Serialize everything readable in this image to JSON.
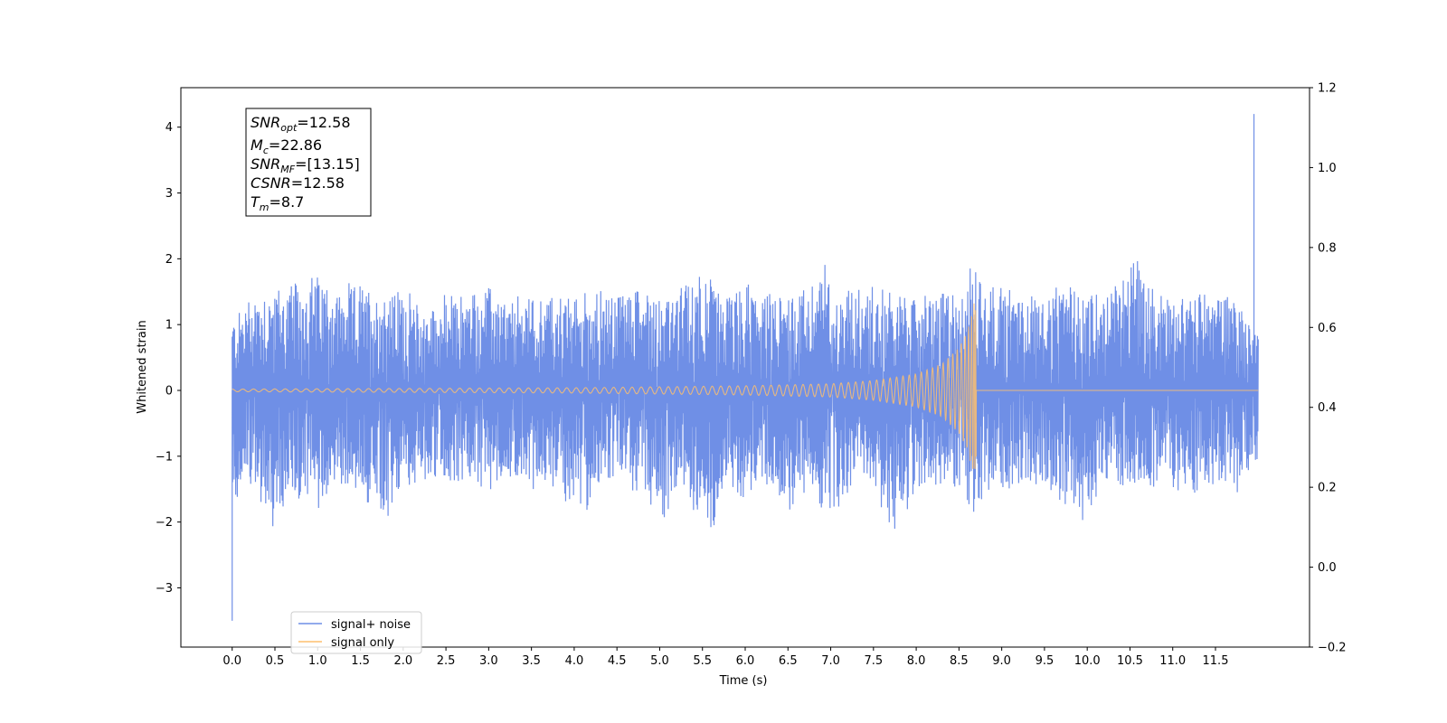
{
  "chart_data": {
    "type": "line",
    "xlabel": "Time (s)",
    "ylabel": "Whitened strain",
    "xlim": [
      -0.6,
      12.6
    ],
    "ylim": [
      -3.9,
      4.6
    ],
    "y2lim": [
      -0.2,
      1.2
    ],
    "x_ticks": [
      0.0,
      0.5,
      1.0,
      1.5,
      2.0,
      2.5,
      3.0,
      3.5,
      4.0,
      4.5,
      5.0,
      5.5,
      6.0,
      6.5,
      7.0,
      7.5,
      8.0,
      8.5,
      9.0,
      9.5,
      10.0,
      10.5,
      11.0,
      11.5
    ],
    "x_tick_labels": [
      "0.0",
      "0.5",
      "1.0",
      "1.5",
      "2.0",
      "2.5",
      "3.0",
      "3.5",
      "4.0",
      "4.5",
      "5.0",
      "5.5",
      "6.0",
      "6.5",
      "7.0",
      "7.5",
      "8.0",
      "8.5",
      "9.0",
      "9.5",
      "10.0",
      "10.5",
      "11.0",
      "11.5"
    ],
    "y_ticks": [
      -3,
      -2,
      -1,
      0,
      1,
      2,
      3,
      4
    ],
    "y_tick_labels": [
      "−3",
      "−2",
      "−1",
      "0",
      "1",
      "2",
      "3",
      "4"
    ],
    "y2_ticks": [
      -0.2,
      0.0,
      0.2,
      0.4,
      0.6,
      0.8,
      1.0,
      1.2
    ],
    "y2_tick_labels": [
      "−0.2",
      "0.0",
      "0.2",
      "0.4",
      "0.6",
      "0.8",
      "1.0",
      "1.2"
    ],
    "grid": false,
    "legend_position": "lower-left",
    "series": [
      {
        "name": "signal+ noise",
        "color": "#6f8fe6",
        "kind": "noisy-envelope",
        "t_start": 0.0,
        "t_end": 12.0,
        "upper_envelope": [
          [
            0.0,
            1.15
          ],
          [
            0.25,
            1.6
          ],
          [
            0.5,
            1.65
          ],
          [
            0.75,
            1.7
          ],
          [
            1.0,
            1.9
          ],
          [
            1.25,
            1.6
          ],
          [
            1.5,
            1.7
          ],
          [
            1.75,
            1.6
          ],
          [
            2.0,
            1.6
          ],
          [
            2.25,
            1.3
          ],
          [
            2.5,
            1.5
          ],
          [
            2.75,
            1.55
          ],
          [
            3.0,
            1.65
          ],
          [
            3.25,
            1.4
          ],
          [
            3.5,
            1.6
          ],
          [
            3.75,
            1.5
          ],
          [
            4.0,
            1.5
          ],
          [
            4.25,
            1.6
          ],
          [
            4.5,
            1.55
          ],
          [
            4.75,
            1.8
          ],
          [
            5.0,
            1.5
          ],
          [
            5.25,
            1.6
          ],
          [
            5.5,
            2.05
          ],
          [
            5.75,
            1.5
          ],
          [
            6.0,
            1.7
          ],
          [
            6.25,
            1.5
          ],
          [
            6.5,
            1.6
          ],
          [
            6.75,
            1.65
          ],
          [
            6.92,
            2.1
          ],
          [
            7.0,
            1.55
          ],
          [
            7.25,
            1.7
          ],
          [
            7.5,
            1.65
          ],
          [
            7.75,
            1.55
          ],
          [
            8.0,
            1.5
          ],
          [
            8.25,
            1.6
          ],
          [
            8.5,
            1.6
          ],
          [
            8.7,
            2.05
          ],
          [
            8.9,
            1.7
          ],
          [
            9.25,
            1.6
          ],
          [
            9.5,
            1.55
          ],
          [
            9.75,
            1.6
          ],
          [
            10.0,
            1.65
          ],
          [
            10.25,
            1.5
          ],
          [
            10.55,
            2.35
          ],
          [
            10.75,
            1.6
          ],
          [
            11.0,
            1.55
          ],
          [
            11.25,
            1.5
          ],
          [
            11.5,
            1.6
          ],
          [
            11.75,
            1.55
          ],
          [
            11.9,
            1.1
          ]
        ],
        "lower_envelope": [
          [
            0.0,
            -1.8
          ],
          [
            0.25,
            -1.5
          ],
          [
            0.45,
            -2.2
          ],
          [
            0.75,
            -1.8
          ],
          [
            1.0,
            -1.9
          ],
          [
            1.25,
            -1.5
          ],
          [
            1.5,
            -1.6
          ],
          [
            1.8,
            -2.35
          ],
          [
            2.0,
            -1.5
          ],
          [
            2.25,
            -1.45
          ],
          [
            2.5,
            -1.5
          ],
          [
            2.75,
            -1.45
          ],
          [
            3.0,
            -1.6
          ],
          [
            3.25,
            -1.4
          ],
          [
            3.5,
            -1.55
          ],
          [
            3.75,
            -1.5
          ],
          [
            4.1,
            -2.1
          ],
          [
            4.25,
            -1.5
          ],
          [
            4.5,
            -1.5
          ],
          [
            4.75,
            -1.6
          ],
          [
            5.1,
            -2.1
          ],
          [
            5.25,
            -1.5
          ],
          [
            5.6,
            -2.35
          ],
          [
            5.75,
            -1.5
          ],
          [
            6.0,
            -1.7
          ],
          [
            6.25,
            -1.5
          ],
          [
            6.55,
            -2.15
          ],
          [
            6.75,
            -1.5
          ],
          [
            6.95,
            -2.2
          ],
          [
            7.25,
            -1.6
          ],
          [
            7.5,
            -1.5
          ],
          [
            7.7,
            -2.35
          ],
          [
            8.0,
            -1.6
          ],
          [
            8.25,
            -1.5
          ],
          [
            8.5,
            -1.6
          ],
          [
            8.7,
            -2.1
          ],
          [
            9.0,
            -1.6
          ],
          [
            9.25,
            -1.5
          ],
          [
            9.5,
            -1.55
          ],
          [
            9.75,
            -2.0
          ],
          [
            9.95,
            -2.25
          ],
          [
            10.25,
            -1.6
          ],
          [
            10.5,
            -1.5
          ],
          [
            10.75,
            -1.6
          ],
          [
            11.0,
            -1.5
          ],
          [
            11.25,
            -1.7
          ],
          [
            11.5,
            -1.6
          ],
          [
            11.75,
            -1.65
          ],
          [
            11.9,
            -1.3
          ]
        ],
        "spikes": [
          [
            0.0,
            -3.5
          ],
          [
            11.95,
            4.2
          ]
        ]
      },
      {
        "name": "signal only",
        "color": "#fdbf6f",
        "kind": "chirp",
        "t_start": 0.0,
        "t_merger": 8.7,
        "t_end": 12.0,
        "amplitude_envelope": [
          [
            0.0,
            0.02
          ],
          [
            2.0,
            0.03
          ],
          [
            4.0,
            0.04
          ],
          [
            6.0,
            0.07
          ],
          [
            7.0,
            0.1
          ],
          [
            7.5,
            0.15
          ],
          [
            8.0,
            0.25
          ],
          [
            8.3,
            0.4
          ],
          [
            8.5,
            0.65
          ],
          [
            8.6,
            0.9
          ],
          [
            8.68,
            1.35
          ],
          [
            8.7,
            1.3
          ]
        ]
      }
    ]
  },
  "info_box": {
    "lines": [
      {
        "base": "SNR",
        "sub": "opt",
        "value": "=12.58"
      },
      {
        "base": "M",
        "sub": "c",
        "value": "=22.86"
      },
      {
        "base": "SNR",
        "sub": "MF",
        "value": "=[13.15]"
      },
      {
        "base": "CSNR",
        "sub": "",
        "value": "=12.58"
      },
      {
        "base": "T",
        "sub": "m",
        "value": "=8.7"
      }
    ]
  }
}
